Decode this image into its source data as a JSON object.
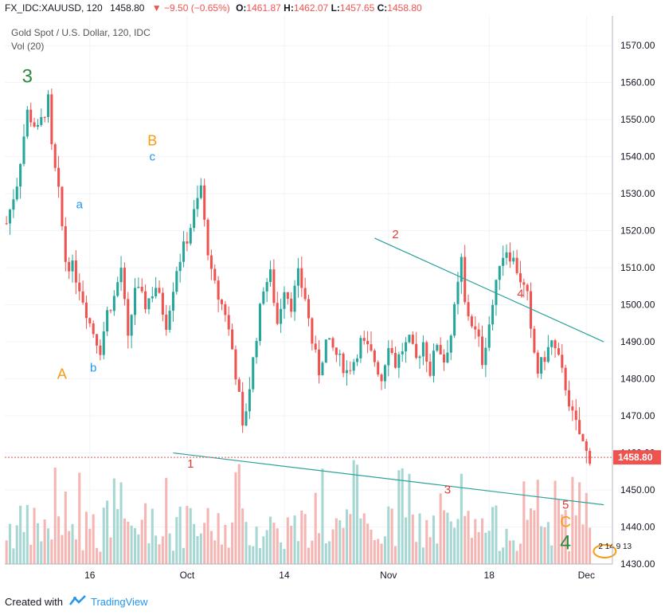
{
  "header": {
    "symbol_line": "FX_IDC:XAUUSD, 120",
    "last": "1458.80",
    "change": "▼ −9.50 (−0.65%)",
    "o_label": "O:",
    "o_value": "1461.87",
    "h_label": "H:",
    "h_value": "1462.07",
    "l_label": "L:",
    "l_value": "1457.65",
    "c_label": "C:",
    "c_value": "1458.80"
  },
  "legend": {
    "title": "Gold Spot / U.S. Dollar, 120, IDC",
    "volume": "Vol (20)"
  },
  "footer": {
    "created_with": "Created with",
    "brand": "TradingView"
  },
  "colors": {
    "up": "#26a69a",
    "down": "#ef5350",
    "vol_up": "#a6d7d2",
    "vol_down": "#f4b5b3",
    "trendline": "#2ba39a",
    "price_line": "#ef5350",
    "wave_green": "#2e8b3e",
    "wave_orange": "#f89b13",
    "wave_blue": "#2196f3",
    "wave_red": "#e53935"
  },
  "chart_data": {
    "type": "candlestick",
    "title": "Gold Spot / U.S. Dollar, 120, IDC",
    "y_ticks": [
      1430,
      1440,
      1450,
      1460,
      1470,
      1480,
      1490,
      1500,
      1510,
      1520,
      1530,
      1540,
      1550,
      1560,
      1570
    ],
    "y_tick_labels": [
      "1430.00",
      "1440.00",
      "1450.00",
      "1460.00",
      "1470.00",
      "1480.00",
      "1490.00",
      "1500.00",
      "1510.00",
      "1520.00",
      "1530.00",
      "1540.00",
      "1550.00",
      "1560.00",
      "1570.00"
    ],
    "ylim": [
      1430,
      1578
    ],
    "x_ticks": [
      "16",
      "Oct",
      "14",
      "Nov",
      "18",
      "Dec"
    ],
    "current_price": 1458.8,
    "current_price_label": "1458.80",
    "price_anchors": [
      [
        0,
        1522
      ],
      [
        3,
        1533
      ],
      [
        6,
        1552
      ],
      [
        9,
        1547
      ],
      [
        12,
        1555
      ],
      [
        13,
        1542
      ],
      [
        15,
        1530
      ],
      [
        17,
        1512
      ],
      [
        19,
        1510
      ],
      [
        21,
        1505
      ],
      [
        24,
        1495
      ],
      [
        27,
        1488
      ],
      [
        29,
        1498
      ],
      [
        31,
        1502
      ],
      [
        33,
        1510
      ],
      [
        35,
        1490
      ],
      [
        37,
        1505
      ],
      [
        40,
        1500
      ],
      [
        43,
        1505
      ],
      [
        46,
        1495
      ],
      [
        49,
        1510
      ],
      [
        52,
        1518
      ],
      [
        55,
        1528
      ],
      [
        56,
        1532
      ],
      [
        57,
        1522
      ],
      [
        59,
        1508
      ],
      [
        61,
        1502
      ],
      [
        63,
        1498
      ],
      [
        65,
        1488
      ],
      [
        67,
        1475
      ],
      [
        68,
        1466
      ],
      [
        70,
        1478
      ],
      [
        72,
        1492
      ],
      [
        74,
        1505
      ],
      [
        76,
        1508
      ],
      [
        78,
        1495
      ],
      [
        80,
        1505
      ],
      [
        82,
        1500
      ],
      [
        84,
        1508
      ],
      [
        86,
        1502
      ],
      [
        88,
        1490
      ],
      [
        90,
        1482
      ],
      [
        92,
        1490
      ],
      [
        94,
        1488
      ],
      [
        96,
        1485
      ],
      [
        98,
        1482
      ],
      [
        100,
        1485
      ],
      [
        102,
        1490
      ],
      [
        104,
        1488
      ],
      [
        106,
        1485
      ],
      [
        108,
        1480
      ],
      [
        110,
        1490
      ],
      [
        112,
        1484
      ],
      [
        114,
        1488
      ],
      [
        116,
        1490
      ],
      [
        118,
        1485
      ],
      [
        120,
        1490
      ],
      [
        122,
        1482
      ],
      [
        124,
        1490
      ],
      [
        126,
        1485
      ],
      [
        128,
        1492
      ],
      [
        130,
        1505
      ],
      [
        131,
        1512
      ],
      [
        132,
        1500
      ],
      [
        134,
        1495
      ],
      [
        136,
        1490
      ],
      [
        137,
        1485
      ],
      [
        139,
        1495
      ],
      [
        141,
        1505
      ],
      [
        142,
        1512
      ],
      [
        144,
        1515
      ],
      [
        146,
        1512
      ],
      [
        148,
        1507
      ],
      [
        150,
        1502
      ],
      [
        151,
        1492
      ],
      [
        153,
        1482
      ],
      [
        155,
        1486
      ],
      [
        157,
        1490
      ],
      [
        159,
        1485
      ],
      [
        161,
        1478
      ],
      [
        163,
        1470
      ],
      [
        165,
        1465
      ],
      [
        167,
        1460
      ],
      [
        168,
        1458.8
      ]
    ],
    "annotations": [
      {
        "text": "3",
        "color": "wave_green",
        "price": 1560,
        "x_bar": 6,
        "size": 24
      },
      {
        "text": "A",
        "color": "wave_orange",
        "price": 1480,
        "x_bar": 16,
        "size": 18
      },
      {
        "text": "a",
        "color": "wave_blue",
        "price": 1526,
        "x_bar": 21,
        "size": 15
      },
      {
        "text": "b",
        "color": "wave_blue",
        "price": 1482,
        "x_bar": 25,
        "size": 15
      },
      {
        "text": "B",
        "color": "wave_orange",
        "price": 1543,
        "x_bar": 42,
        "size": 18
      },
      {
        "text": "c",
        "color": "wave_blue",
        "price": 1539,
        "x_bar": 42,
        "size": 15
      },
      {
        "text": "1",
        "color": "wave_red",
        "price": 1456,
        "x_bar": 53,
        "size": 15
      },
      {
        "text": "2",
        "color": "wave_red",
        "price": 1518,
        "x_bar": 112,
        "size": 15
      },
      {
        "text": "3",
        "color": "wave_red",
        "price": 1449,
        "x_bar": 127,
        "size": 15
      },
      {
        "text": "4",
        "color": "wave_red",
        "price": 1502,
        "x_bar": 148,
        "size": 15
      },
      {
        "text": "5",
        "color": "wave_red",
        "price": 1445,
        "x_bar": 161,
        "size": 15
      },
      {
        "text": "C",
        "color": "wave_orange",
        "price": 1440,
        "x_bar": 161,
        "size": 19
      },
      {
        "text": "4",
        "color": "wave_green",
        "price": 1434,
        "x_bar": 161,
        "size": 25
      }
    ],
    "trendlines": [
      {
        "from": [
          48,
          1460
        ],
        "to": [
          172,
          1446
        ]
      },
      {
        "from": [
          106,
          1518
        ],
        "to": [
          172,
          1490
        ]
      }
    ],
    "events_label": "2 14 9 13"
  }
}
